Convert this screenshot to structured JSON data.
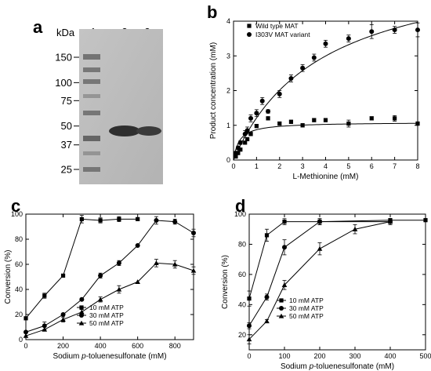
{
  "chart_data": [
    {
      "panel": "a",
      "type": "gel",
      "unit_label": "kDa",
      "lane_labels": [
        "1",
        "2",
        "3"
      ],
      "marker_labels": [
        "150",
        "100",
        "75",
        "50",
        "37",
        "25"
      ],
      "marker_values": [
        150,
        100,
        75,
        50,
        37,
        25
      ]
    },
    {
      "panel": "b",
      "type": "scatter",
      "xlabel": "L-Methionine (mM)",
      "ylabel": "Product concentration (mM)",
      "xlim": [
        0,
        8
      ],
      "ylim": [
        0,
        4
      ],
      "xticks": [
        "0",
        "1",
        "2",
        "3",
        "4",
        "5",
        "6",
        "7",
        "8"
      ],
      "yticks": [
        "0",
        "1",
        "2",
        "3",
        "4"
      ],
      "legend_position": "top-left",
      "series": [
        {
          "name": "Wild type MAT",
          "marker": "square",
          "x": [
            0.1,
            0.2,
            0.3,
            0.5,
            0.6,
            0.75,
            1.0,
            1.5,
            2.0,
            2.5,
            3.0,
            3.5,
            4.0,
            5.0,
            6.0,
            7.0,
            8.0
          ],
          "y": [
            0.1,
            0.2,
            0.3,
            0.5,
            0.6,
            0.75,
            0.98,
            1.2,
            1.05,
            1.1,
            1.0,
            1.15,
            1.15,
            1.05,
            1.2,
            1.2,
            1.05
          ],
          "yerr": [
            0,
            0,
            0,
            0,
            0,
            0.05,
            0.05,
            0.05,
            0.05,
            0.05,
            0.05,
            0.05,
            0.05,
            0.1,
            0.05,
            0.08,
            0.05
          ],
          "fit": {
            "vmax": 1.09,
            "km": 0.25
          }
        },
        {
          "name": "I303V MAT variant",
          "marker": "circle",
          "x": [
            0.1,
            0.2,
            0.3,
            0.5,
            0.6,
            0.75,
            1.0,
            1.25,
            1.5,
            2.0,
            2.5,
            3.0,
            3.5,
            4.0,
            5.0,
            6.0,
            7.0,
            8.0
          ],
          "y": [
            0.2,
            0.35,
            0.5,
            0.75,
            0.85,
            1.2,
            1.35,
            1.7,
            1.4,
            1.9,
            2.35,
            2.65,
            2.95,
            3.35,
            3.5,
            3.7,
            3.75,
            3.75
          ],
          "yerr": [
            0.05,
            0.05,
            0.05,
            0.1,
            0.1,
            0.1,
            0.1,
            0.1,
            0.05,
            0.1,
            0.1,
            0.1,
            0.1,
            0.1,
            0.1,
            0.2,
            0.1,
            0.2
          ],
          "fit": {
            "vmax": 5.88,
            "km": 3.85
          }
        }
      ]
    },
    {
      "panel": "c",
      "type": "line",
      "xlabel_pre": "Sodium ",
      "xlabel_ital": "p",
      "xlabel_post": "-toluenesulfonate (mM)",
      "ylabel": "Conversion (%)",
      "xlim": [
        0,
        900
      ],
      "ylim": [
        0,
        100
      ],
      "xticks": [
        "0",
        "200",
        "400",
        "600",
        "800"
      ],
      "yticks": [
        "0",
        "20",
        "40",
        "60",
        "80",
        "100"
      ],
      "legend_position": "bottom-center",
      "series": [
        {
          "name": "10 mM ATP",
          "marker": "square",
          "x": [
            0,
            100,
            200,
            300,
            400,
            500,
            600
          ],
          "y": [
            17,
            35,
            51,
            96,
            95,
            96,
            96
          ],
          "yerr": [
            0,
            2,
            0,
            3,
            2,
            2,
            1
          ]
        },
        {
          "name": "30 mM ATP",
          "marker": "circle",
          "x": [
            0,
            100,
            200,
            300,
            400,
            500,
            600,
            700,
            800,
            900
          ],
          "y": [
            6,
            11,
            20,
            32,
            51,
            61,
            75,
            95,
            94,
            85
          ],
          "yerr": [
            0,
            3,
            0,
            0,
            2,
            2,
            0,
            3,
            2,
            3
          ]
        },
        {
          "name": "50 mM ATP",
          "marker": "triangle",
          "x": [
            0,
            100,
            200,
            300,
            400,
            500,
            600,
            700,
            800,
            900
          ],
          "y": [
            3,
            8,
            16,
            22,
            32,
            40,
            46,
            61,
            60,
            55
          ],
          "yerr": [
            0,
            0,
            2,
            2,
            2,
            3,
            0,
            3,
            3,
            3
          ]
        }
      ]
    },
    {
      "panel": "d",
      "type": "line",
      "xlabel_pre": "Sodium ",
      "xlabel_ital": "p",
      "xlabel_post": "-toluenesulfonate (mM)",
      "ylabel": "Conversion (%)",
      "xlim": [
        0,
        500
      ],
      "ylim": [
        10,
        100
      ],
      "xticks": [
        "0",
        "100",
        "200",
        "300",
        "400",
        "500"
      ],
      "yticks": [
        "20",
        "40",
        "60",
        "80",
        "100"
      ],
      "legend_position": "center-left",
      "series": [
        {
          "name": "10 mM ATP",
          "marker": "square",
          "x": [
            0,
            50,
            100,
            200,
            400,
            500
          ],
          "y": [
            44,
            86,
            95,
            95,
            96,
            96
          ],
          "yerr": [
            5,
            4,
            2,
            2,
            1,
            1
          ]
        },
        {
          "name": "30 mM ATP",
          "marker": "circle",
          "x": [
            0,
            50,
            100,
            200,
            400
          ],
          "y": [
            26,
            45,
            78,
            95,
            95
          ],
          "yerr": [
            2,
            2,
            5,
            2,
            1
          ]
        },
        {
          "name": "50 mM ATP",
          "marker": "triangle",
          "x": [
            0,
            50,
            100,
            200,
            300,
            400
          ],
          "y": [
            17,
            29,
            53,
            77,
            90,
            95
          ],
          "yerr": [
            3,
            1,
            3,
            4,
            3,
            2
          ]
        }
      ]
    }
  ]
}
